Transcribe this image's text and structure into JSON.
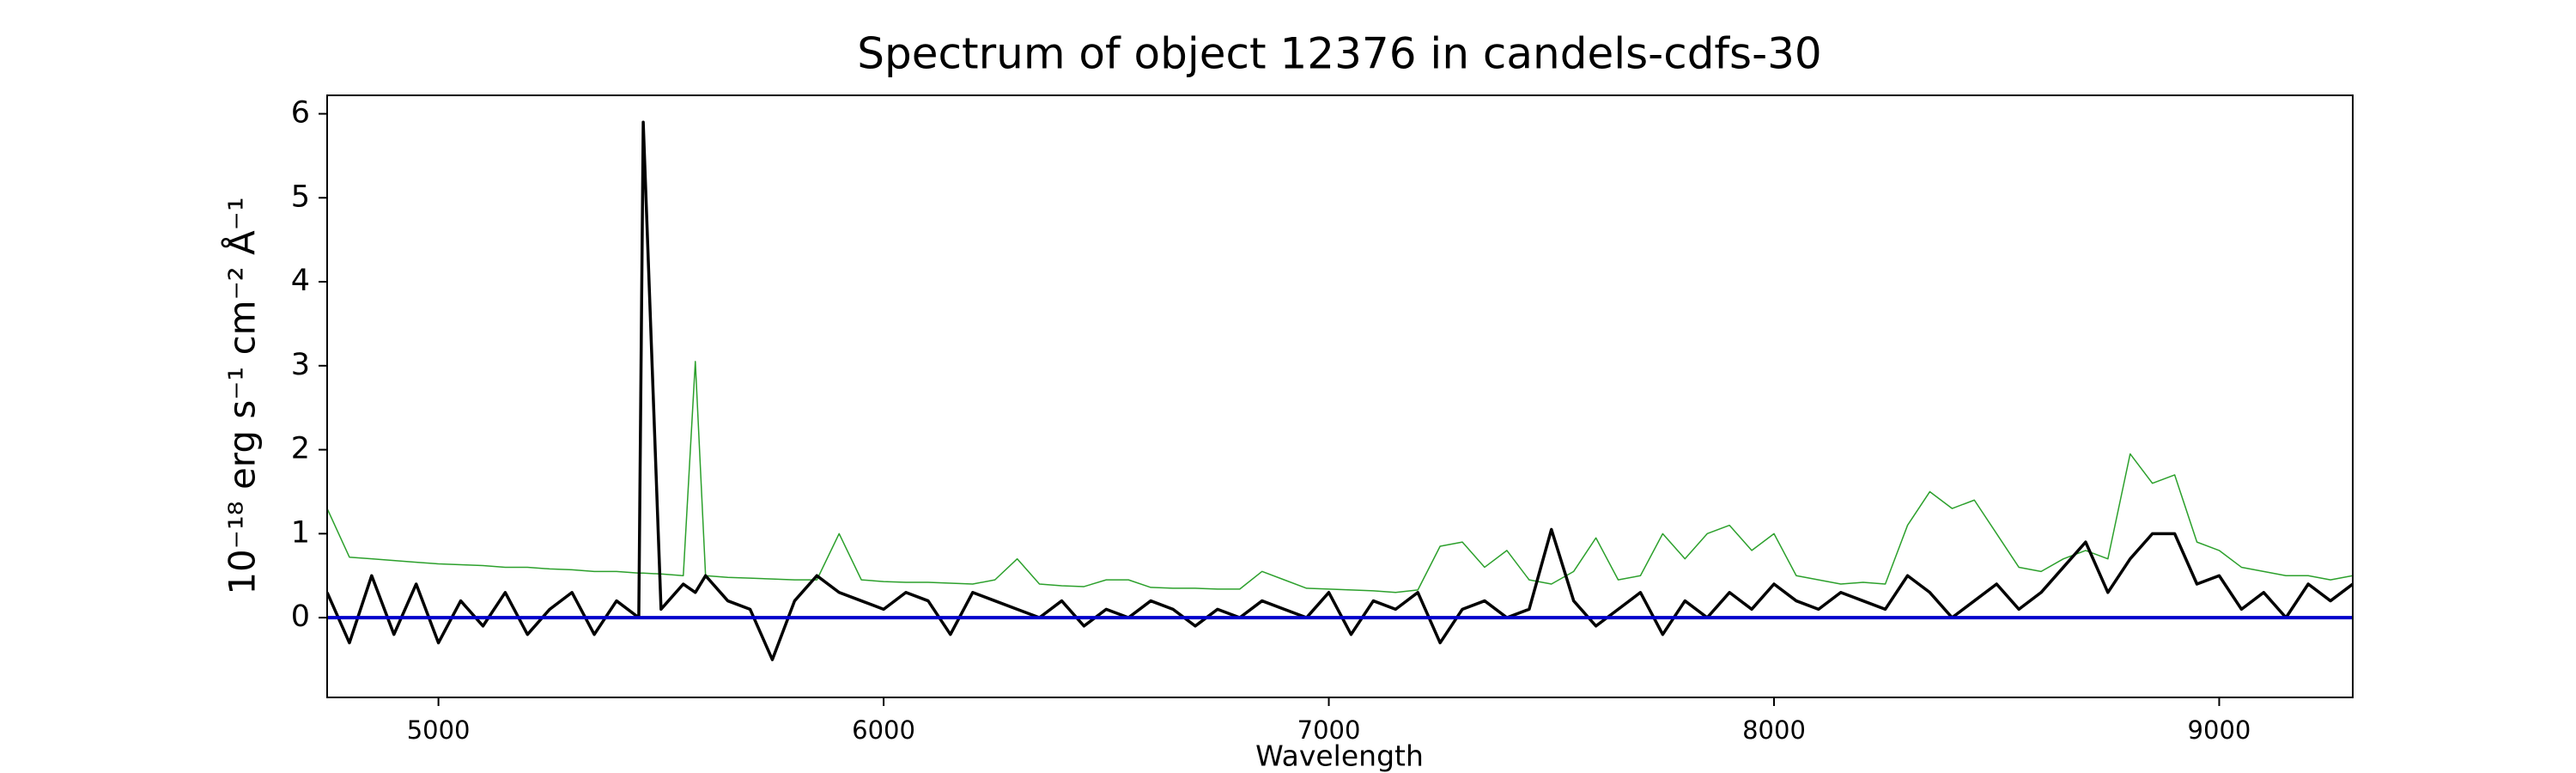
{
  "chart_data": {
    "type": "line",
    "title": "Spectrum of object 12376 in candels-cdfs-30",
    "x_label": "Wavelength",
    "y_label": "10⁻¹⁸ erg s⁻¹ cm⁻² Å⁻¹",
    "x": [
      4750,
      4800,
      4850,
      4900,
      4950,
      5000,
      5050,
      5100,
      5150,
      5200,
      5250,
      5300,
      5350,
      5400,
      5450,
      5460,
      5500,
      5550,
      5577,
      5600,
      5650,
      5700,
      5750,
      5800,
      5850,
      5900,
      5950,
      6000,
      6050,
      6100,
      6150,
      6200,
      6250,
      6300,
      6350,
      6400,
      6450,
      6500,
      6550,
      6600,
      6650,
      6700,
      6750,
      6800,
      6850,
      6900,
      6950,
      7000,
      7050,
      7100,
      7150,
      7200,
      7250,
      7300,
      7350,
      7400,
      7450,
      7500,
      7550,
      7600,
      7650,
      7700,
      7750,
      7800,
      7850,
      7900,
      7950,
      8000,
      8050,
      8100,
      8150,
      8200,
      8250,
      8300,
      8350,
      8400,
      8450,
      8500,
      8550,
      8600,
      8650,
      8700,
      8750,
      8800,
      8850,
      8900,
      8950,
      9000,
      9050,
      9100,
      9150,
      9200,
      9250,
      9300
    ],
    "series": [
      {
        "color": "#2ca02c",
        "width": 1.5,
        "values": [
          1.3,
          0.72,
          0.7,
          0.68,
          0.66,
          0.64,
          0.63,
          0.62,
          0.6,
          0.6,
          0.58,
          0.57,
          0.55,
          0.55,
          0.53,
          0.53,
          0.52,
          0.5,
          3.05,
          0.5,
          0.48,
          0.47,
          0.46,
          0.45,
          0.45,
          1.0,
          0.45,
          0.43,
          0.42,
          0.42,
          0.41,
          0.4,
          0.45,
          0.7,
          0.4,
          0.38,
          0.37,
          0.45,
          0.45,
          0.36,
          0.35,
          0.35,
          0.34,
          0.34,
          0.55,
          0.45,
          0.35,
          0.34,
          0.33,
          0.32,
          0.3,
          0.33,
          0.85,
          0.9,
          0.6,
          0.8,
          0.45,
          0.4,
          0.55,
          0.95,
          0.45,
          0.5,
          1.0,
          0.7,
          1.0,
          1.1,
          0.8,
          1.0,
          0.5,
          0.45,
          0.4,
          0.42,
          0.4,
          1.1,
          1.5,
          1.3,
          1.4,
          1.0,
          0.6,
          0.55,
          0.7,
          0.8,
          0.7,
          1.95,
          1.6,
          1.7,
          0.9,
          0.8,
          0.6,
          0.55,
          0.5,
          0.5,
          0.45,
          0.5
        ]
      },
      {
        "color": "#000000",
        "width": 3.5,
        "values": [
          0.3,
          -0.3,
          0.5,
          -0.2,
          0.4,
          -0.3,
          0.2,
          -0.1,
          0.3,
          -0.2,
          0.1,
          0.3,
          -0.2,
          0.2,
          0.0,
          5.9,
          0.1,
          0.4,
          0.3,
          0.5,
          0.2,
          0.1,
          -0.5,
          0.2,
          0.5,
          0.3,
          0.2,
          0.1,
          0.3,
          0.2,
          -0.2,
          0.3,
          0.2,
          0.1,
          0.0,
          0.2,
          -0.1,
          0.1,
          0.0,
          0.2,
          0.1,
          -0.1,
          0.1,
          0.0,
          0.2,
          0.1,
          0.0,
          0.3,
          -0.2,
          0.2,
          0.1,
          0.3,
          -0.3,
          0.1,
          0.2,
          0.0,
          0.1,
          1.05,
          0.2,
          -0.1,
          0.1,
          0.3,
          -0.2,
          0.2,
          0.0,
          0.3,
          0.1,
          0.4,
          0.2,
          0.1,
          0.3,
          0.2,
          0.1,
          0.5,
          0.3,
          0.0,
          0.2,
          0.4,
          0.1,
          0.3,
          0.6,
          0.9,
          0.3,
          0.7,
          1.0,
          1.0,
          0.4,
          0.5,
          0.1,
          0.3,
          0.0,
          0.4,
          0.2,
          0.4
        ]
      }
    ],
    "reference_line": {
      "value": 0,
      "color": "#0000cc"
    },
    "xlim": [
      4750,
      9300
    ],
    "xticks": [
      5000,
      6000,
      7000,
      8000,
      9000
    ],
    "ylim": [
      -0.95,
      6.22
    ],
    "yticks": [
      0,
      1,
      2,
      3,
      4,
      5,
      6
    ]
  }
}
